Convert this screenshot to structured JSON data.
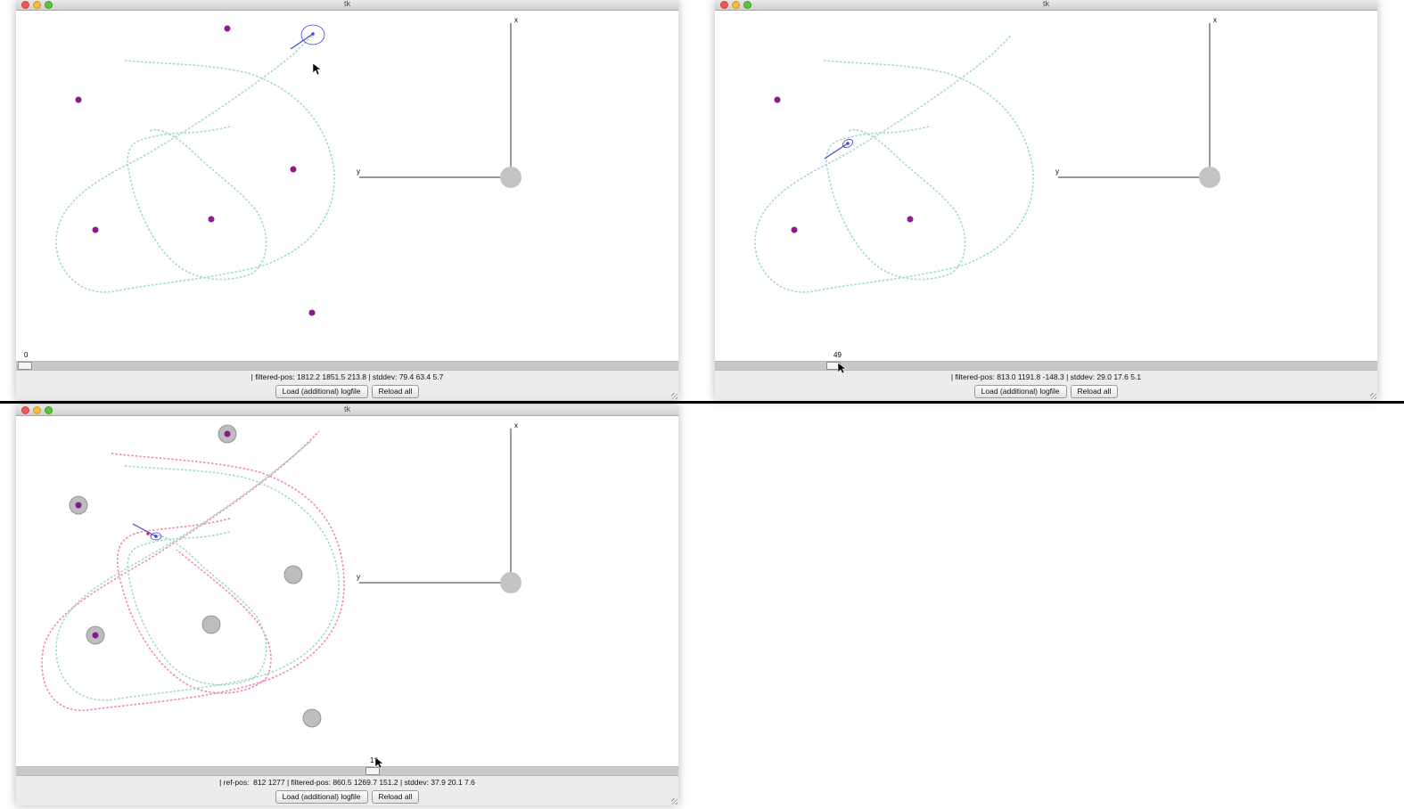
{
  "colors": {
    "filtered_track": "#9fd9d2",
    "reference_track": "#f08aa6",
    "landmark": "#8b1a8d",
    "landmark_ring": "#bdbdbd",
    "robot": "#4444dd",
    "axis": "#333333"
  },
  "cursor_icon": "arrow-pointer-icon",
  "windows": [
    {
      "title": "tk",
      "axis_labels": {
        "x": "x",
        "y": "y"
      },
      "frame": "0",
      "status": "| filtered-pos: 1812.2 1851.5 213.8 | stddev: 79.4 63.4 5.7",
      "buttons": {
        "load": "Load (additional) logfile",
        "reload": "Reload all"
      },
      "slider_fraction": 0.0
    },
    {
      "title": "tk",
      "axis_labels": {
        "x": "x",
        "y": "y"
      },
      "frame": "49",
      "status": "| filtered-pos: 813.0 1191.8 -148.3 | stddev: 29.0 17.6 5.1",
      "buttons": {
        "load": "Load (additional) logfile",
        "reload": "Reload all"
      },
      "slider_fraction": 0.17
    },
    {
      "title": "tk",
      "axis_labels": {
        "x": "x",
        "y": "y"
      },
      "frame": "1?",
      "status": "| ref-pos:  812 1277 | filtered-pos: 860.5 1269.7 151.2 | stddev: 37.9 20.1 7.6",
      "buttons": {
        "load": "Load (additional) logfile",
        "reload": "Reload all"
      },
      "slider_fraction": 0.54
    }
  ]
}
